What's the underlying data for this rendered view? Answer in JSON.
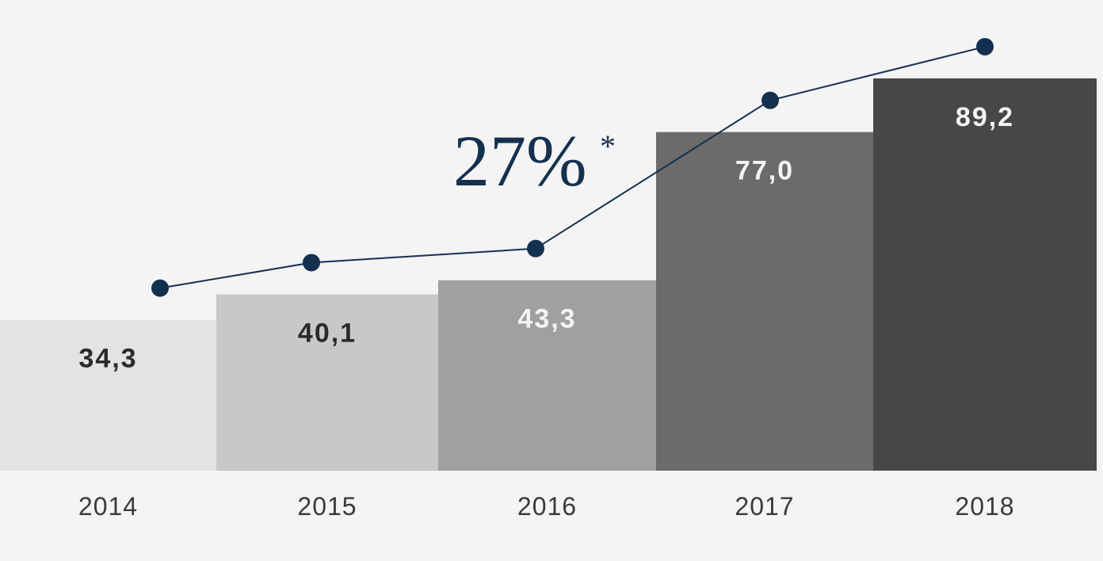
{
  "chart_data": {
    "type": "bar",
    "categories": [
      "2014",
      "2015",
      "2016",
      "2017",
      "2018"
    ],
    "values": [
      34.3,
      40.1,
      43.3,
      77.0,
      89.2
    ],
    "value_labels": [
      "34,3",
      "40,1",
      "43,3",
      "77,0",
      "89,2"
    ],
    "bar_colors": [
      "#e3e3e3",
      "#c8c8c8",
      "#a0a0a0",
      "#6b6b6a",
      "#474746"
    ],
    "value_label_colors": [
      "#2a2a2a",
      "#2a2a2a",
      "#f4f4f4",
      "#f4f4f4",
      "#f4f4f4"
    ],
    "line_series": {
      "type": "line",
      "color": "#14304f",
      "values": [
        34.3,
        40.1,
        43.3,
        77.0,
        89.2
      ],
      "note": ""
    },
    "annotation": {
      "text": "27%",
      "footnote_marker": "*"
    },
    "ylim": [
      0,
      100
    ],
    "grid": false,
    "legend": "none",
    "title": "",
    "xlabel": "",
    "ylabel": ""
  }
}
